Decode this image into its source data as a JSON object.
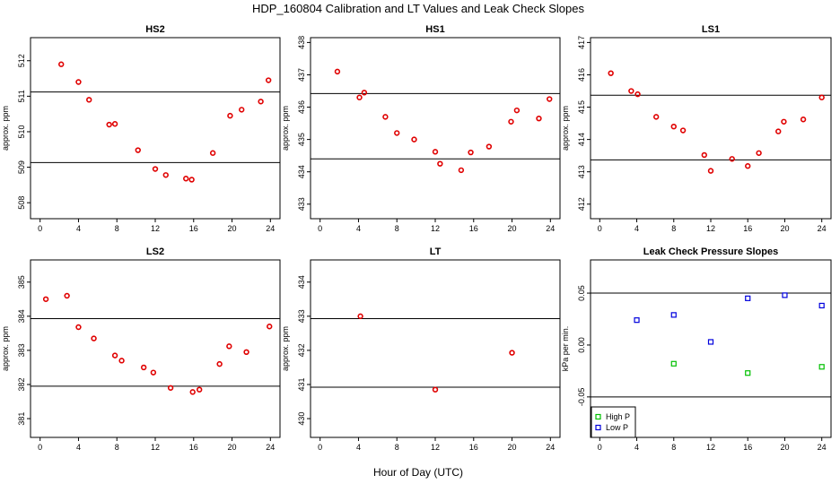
{
  "figure": {
    "title": "HDP_160804  Calibration and LT Values and Leak Check Slopes",
    "xlabel": "Hour of Day (UTC)"
  },
  "chart_data": [
    {
      "type": "scatter",
      "title": "HS2",
      "ylabel": "approx. ppm",
      "xlim": [
        -1,
        25
      ],
      "ylim": [
        507.55,
        512.65
      ],
      "xticks": [
        0,
        4,
        8,
        12,
        16,
        20,
        24
      ],
      "yticks": [
        508,
        509,
        510,
        511,
        512
      ],
      "hlines": [
        511.12,
        509.13
      ],
      "series": [
        {
          "name": "",
          "color": "#e00000",
          "points": [
            [
              2.2,
              511.9
            ],
            [
              4.0,
              511.4
            ],
            [
              5.1,
              510.9
            ],
            [
              7.2,
              510.2
            ],
            [
              7.8,
              510.22
            ],
            [
              10.2,
              509.48
            ],
            [
              12.0,
              508.95
            ],
            [
              13.1,
              508.78
            ],
            [
              15.2,
              508.68
            ],
            [
              15.8,
              508.65
            ],
            [
              18.0,
              509.4
            ],
            [
              19.8,
              510.45
            ],
            [
              21.0,
              510.62
            ],
            [
              23.0,
              510.85
            ],
            [
              23.8,
              511.45
            ]
          ]
        }
      ]
    },
    {
      "type": "scatter",
      "title": "HS1",
      "ylabel": "approx. ppm",
      "xlim": [
        -1,
        25
      ],
      "ylim": [
        432.55,
        438.15
      ],
      "xticks": [
        0,
        4,
        8,
        12,
        16,
        20,
        24
      ],
      "yticks": [
        433,
        434,
        435,
        436,
        437,
        438
      ],
      "hlines": [
        436.42,
        434.4
      ],
      "series": [
        {
          "name": "",
          "color": "#e00000",
          "points": [
            [
              1.8,
              437.1
            ],
            [
              4.1,
              436.3
            ],
            [
              4.6,
              436.45
            ],
            [
              6.8,
              435.7
            ],
            [
              8.0,
              435.2
            ],
            [
              9.8,
              435.0
            ],
            [
              12.0,
              434.62
            ],
            [
              12.5,
              434.25
            ],
            [
              14.7,
              434.05
            ],
            [
              15.7,
              434.6
            ],
            [
              17.6,
              434.78
            ],
            [
              19.9,
              435.55
            ],
            [
              20.5,
              435.9
            ],
            [
              22.8,
              435.65
            ],
            [
              23.9,
              436.25
            ]
          ]
        }
      ]
    },
    {
      "type": "scatter",
      "title": "LS1",
      "ylabel": "approx. ppm",
      "xlim": [
        -1,
        25
      ],
      "ylim": [
        411.55,
        417.15
      ],
      "xticks": [
        0,
        4,
        8,
        12,
        16,
        20,
        24
      ],
      "yticks": [
        412,
        413,
        414,
        415,
        416,
        417
      ],
      "hlines": [
        415.37,
        413.37
      ],
      "series": [
        {
          "name": "",
          "color": "#e00000",
          "points": [
            [
              1.2,
              416.05
            ],
            [
              3.4,
              415.5
            ],
            [
              4.1,
              415.4
            ],
            [
              6.1,
              414.7
            ],
            [
              8.0,
              414.4
            ],
            [
              9.0,
              414.28
            ],
            [
              11.3,
              413.52
            ],
            [
              12.0,
              413.03
            ],
            [
              14.3,
              413.4
            ],
            [
              16.0,
              413.18
            ],
            [
              17.2,
              413.58
            ],
            [
              19.3,
              414.25
            ],
            [
              19.9,
              414.55
            ],
            [
              22.0,
              414.62
            ],
            [
              24.0,
              415.3
            ]
          ]
        }
      ]
    },
    {
      "type": "scatter",
      "title": "LS2",
      "ylabel": "approx. ppm",
      "xlim": [
        -1,
        25
      ],
      "ylim": [
        380.45,
        385.65
      ],
      "xticks": [
        0,
        4,
        8,
        12,
        16,
        20,
        24
      ],
      "yticks": [
        381,
        382,
        383,
        384,
        385
      ],
      "hlines": [
        383.93,
        381.95
      ],
      "series": [
        {
          "name": "",
          "color": "#e00000",
          "points": [
            [
              0.6,
              384.5
            ],
            [
              2.8,
              384.6
            ],
            [
              4.0,
              383.68
            ],
            [
              5.6,
              383.35
            ],
            [
              7.8,
              382.85
            ],
            [
              8.5,
              382.7
            ],
            [
              10.8,
              382.5
            ],
            [
              11.8,
              382.35
            ],
            [
              13.6,
              381.9
            ],
            [
              15.9,
              381.78
            ],
            [
              16.6,
              381.85
            ],
            [
              18.7,
              382.6
            ],
            [
              19.7,
              383.12
            ],
            [
              21.5,
              382.95
            ],
            [
              23.9,
              383.7
            ]
          ]
        }
      ]
    },
    {
      "type": "scatter",
      "title": "LT",
      "ylabel": "approx. ppm",
      "xlim": [
        -1,
        25
      ],
      "ylim": [
        429.45,
        434.65
      ],
      "xticks": [
        0,
        4,
        8,
        12,
        16,
        20,
        24
      ],
      "yticks": [
        430,
        431,
        432,
        433,
        434
      ],
      "hlines": [
        432.93,
        430.92
      ],
      "series": [
        {
          "name": "",
          "color": "#e00000",
          "points": [
            [
              4.2,
              433.0
            ],
            [
              12.0,
              430.85
            ],
            [
              20.0,
              431.93
            ]
          ]
        }
      ]
    },
    {
      "type": "scatter",
      "title": "Leak Check Pressure Slopes",
      "ylabel": "kPa per min.",
      "xlim": [
        -1,
        25
      ],
      "ylim": [
        -0.089,
        0.082
      ],
      "xticks": [
        0,
        4,
        8,
        12,
        16,
        20,
        24
      ],
      "yticks": [
        -0.05,
        0.0,
        0.05
      ],
      "ytick_labels": [
        "-0.05",
        "0.00",
        "0.05"
      ],
      "hlines": [
        0.05,
        -0.05
      ],
      "legend": "bottom-left",
      "series": [
        {
          "name": "High P",
          "color": "#00c000",
          "points": [
            [
              8.0,
              -0.018
            ],
            [
              16.0,
              -0.027
            ],
            [
              24.0,
              -0.021
            ]
          ]
        },
        {
          "name": "Low P",
          "color": "#0000dd",
          "points": [
            [
              4.0,
              0.024
            ],
            [
              8.0,
              0.029
            ],
            [
              12.0,
              0.003
            ],
            [
              16.0,
              0.045
            ],
            [
              20.0,
              0.048
            ],
            [
              24.0,
              0.038
            ]
          ]
        }
      ]
    }
  ]
}
